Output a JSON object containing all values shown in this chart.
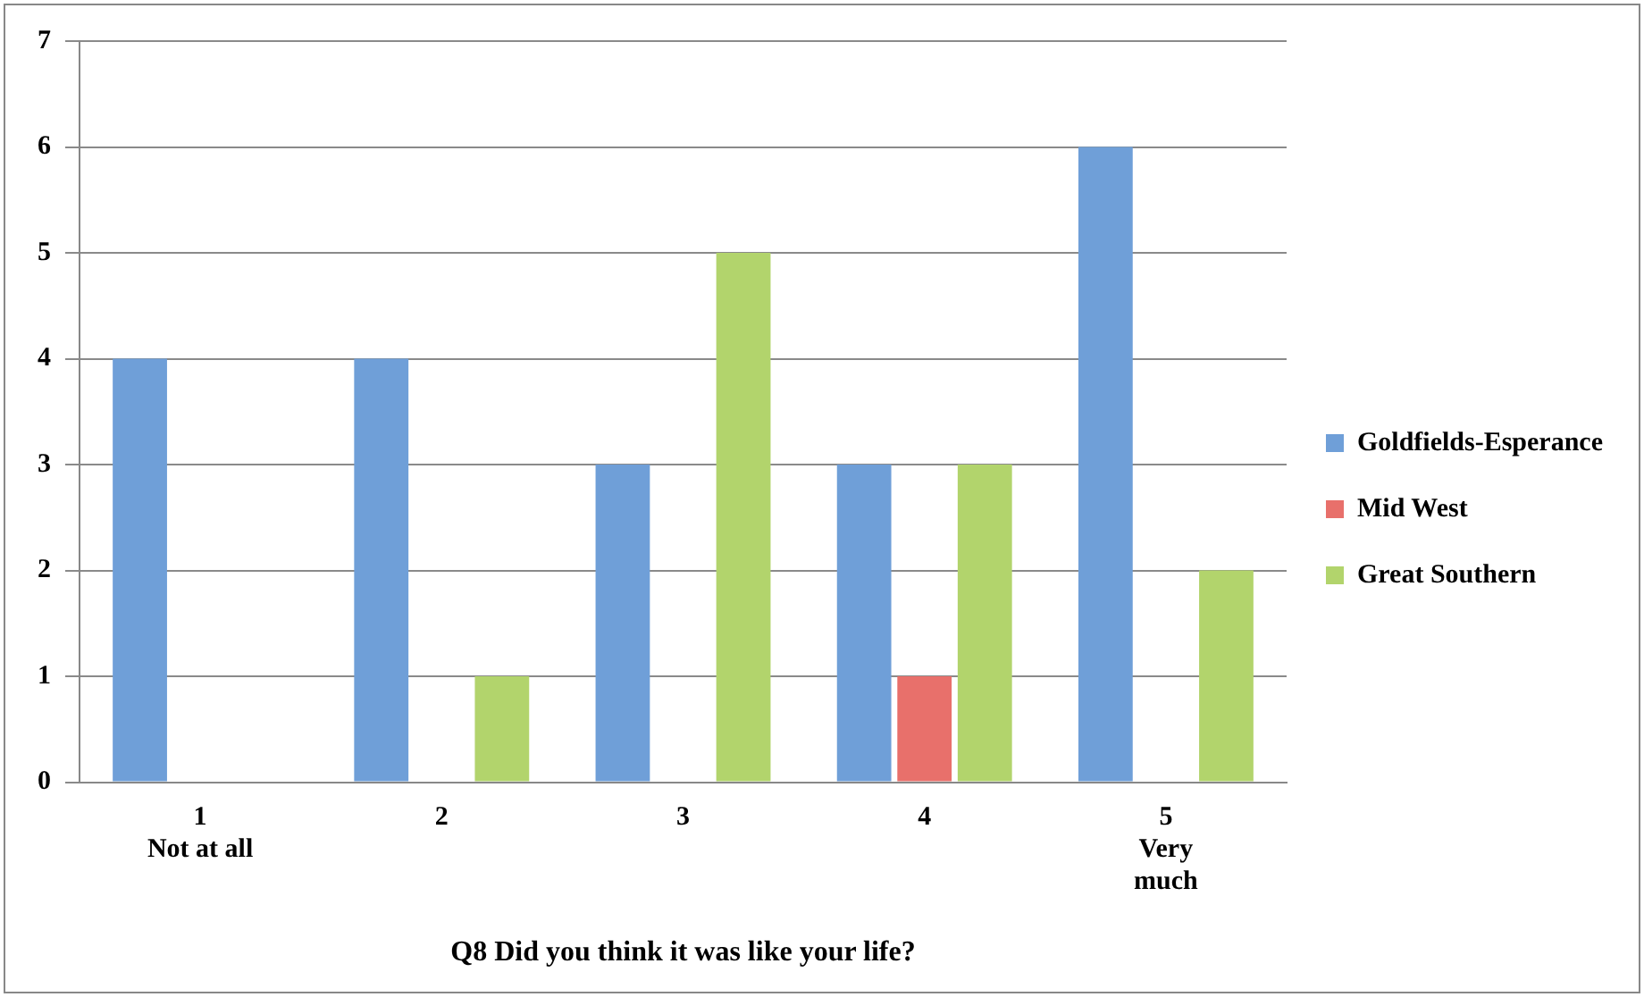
{
  "chart_data": {
    "type": "bar",
    "xlabel": "Q8 Did you think it was like your life?",
    "categories": [
      "1\nNot at all",
      "2",
      "3",
      "4",
      "5\nVery\nmuch"
    ],
    "series": [
      {
        "name": "Goldfields-Esperance",
        "color": "#6f9fd8",
        "values": [
          4,
          4,
          3,
          3,
          6
        ]
      },
      {
        "name": "Mid West",
        "color": "#e8706b",
        "values": [
          0,
          0,
          0,
          1,
          0
        ]
      },
      {
        "name": "Great Southern",
        "color": "#b2d46c",
        "values": [
          0,
          1,
          5,
          3,
          2
        ]
      }
    ],
    "ylim": [
      0,
      7
    ],
    "yticks": [
      0,
      1,
      2,
      3,
      4,
      5,
      6,
      7
    ],
    "grid": "y",
    "legend": "right"
  }
}
